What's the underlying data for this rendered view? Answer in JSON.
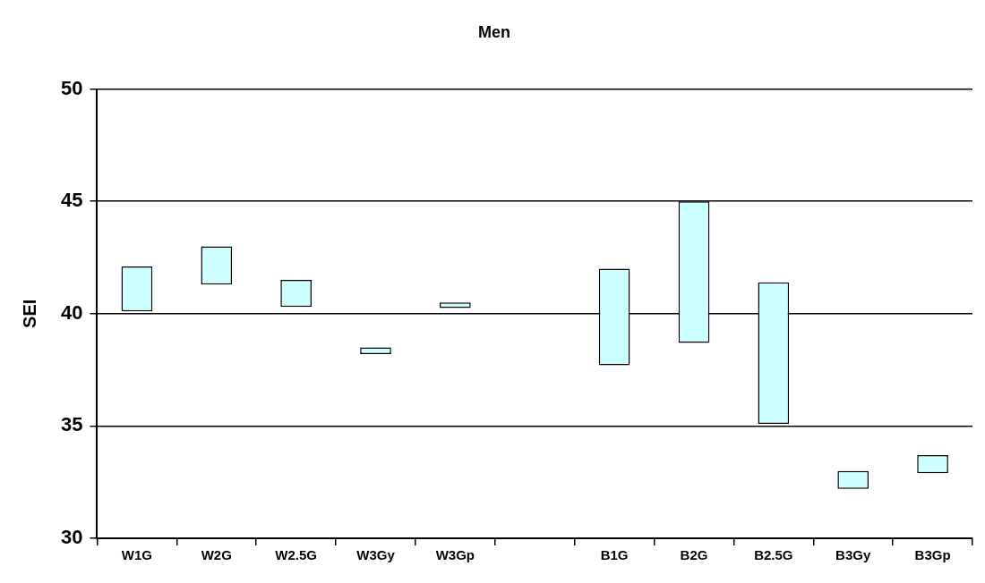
{
  "chart_data": {
    "type": "bar",
    "title": "Men",
    "ylabel": "SEI",
    "categories": [
      "W1G",
      "W2G",
      "W2.5G",
      "W3Gy",
      "W3Gp",
      null,
      "B1G",
      "B2G",
      "B2.5G",
      "B3Gy",
      "B3Gp"
    ],
    "base": [
      40.1,
      41.3,
      40.3,
      38.2,
      40.25,
      null,
      37.7,
      38.7,
      35.1,
      32.2,
      32.9
    ],
    "values": [
      2.0,
      1.7,
      1.2,
      0.3,
      0.25,
      null,
      4.3,
      6.3,
      6.3,
      0.8,
      0.8
    ],
    "color": "#ccffff",
    "ylim": [
      30,
      50
    ],
    "yticks": [
      30,
      35,
      40,
      45,
      50
    ],
    "grid": "y"
  }
}
